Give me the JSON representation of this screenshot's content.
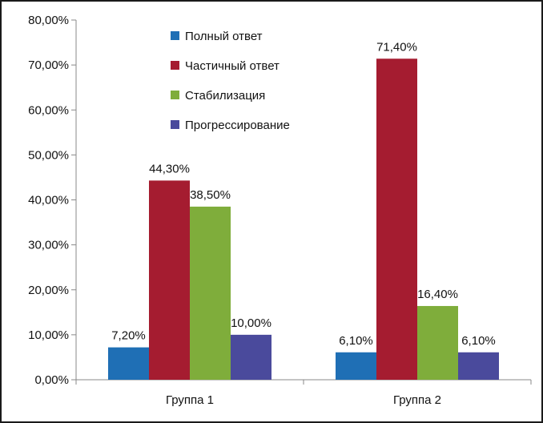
{
  "chart_data": {
    "type": "bar",
    "title": "",
    "xlabel": "",
    "ylabel": "",
    "categories": [
      "Группа 1",
      "Группа 2"
    ],
    "series": [
      {
        "name": "Полный ответ",
        "color": "#1f6fb5",
        "values": [
          7.2,
          6.1
        ],
        "labels": [
          "7,20%",
          "6,10%"
        ]
      },
      {
        "name": "Частичный ответ",
        "color": "#a51c30",
        "values": [
          44.3,
          71.4
        ],
        "labels": [
          "44,30%",
          "71,40%"
        ]
      },
      {
        "name": "Стабилизация",
        "color": "#7fad3b",
        "values": [
          38.5,
          16.4
        ],
        "labels": [
          "38,50%",
          "16,40%"
        ]
      },
      {
        "name": "Прогрессирование",
        "color": "#4a4a9c",
        "values": [
          10.0,
          6.1
        ],
        "labels": [
          "10,00%",
          "6,10%"
        ]
      }
    ],
    "ylim": [
      0,
      80
    ],
    "yticks": [
      0,
      10,
      20,
      30,
      40,
      50,
      60,
      70,
      80
    ],
    "ytick_labels": [
      "0,00%",
      "10,00%",
      "20,00%",
      "30,00%",
      "40,00%",
      "50,00%",
      "60,00%",
      "70,00%",
      "80,00%"
    ],
    "grid": false,
    "legend_position": "top-center"
  }
}
